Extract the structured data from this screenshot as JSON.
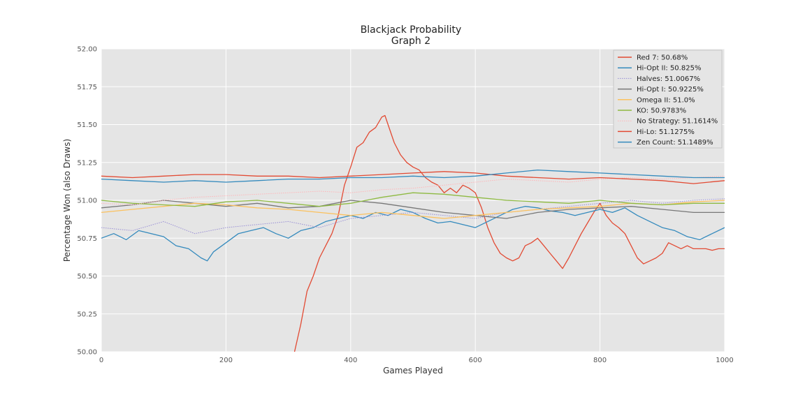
{
  "chart_data": {
    "type": "line",
    "title": "Blackjack Probability",
    "subtitle": "Graph 2",
    "xlabel": "Games Played",
    "ylabel": "Percentage Won (also Draws)",
    "xlim": [
      0,
      1000
    ],
    "ylim": [
      50.0,
      52.0
    ],
    "xticks": [
      0,
      200,
      400,
      600,
      800,
      1000
    ],
    "yticks": [
      "50.00",
      "50.25",
      "50.50",
      "50.75",
      "51.00",
      "51.25",
      "51.50",
      "51.75",
      "52.00"
    ],
    "grid": true,
    "legend_position": "top-right",
    "background": "#e5e5e5",
    "series": [
      {
        "name": "Red 7: 50.68%",
        "color": "#e24a33",
        "style": "solid",
        "x": [
          310,
          320,
          330,
          340,
          350,
          360,
          370,
          380,
          390,
          400,
          410,
          420,
          430,
          440,
          450,
          455,
          460,
          470,
          480,
          490,
          500,
          510,
          520,
          530,
          540,
          550,
          560,
          570,
          580,
          590,
          600,
          610,
          620,
          630,
          640,
          650,
          660,
          670,
          680,
          690,
          700,
          710,
          720,
          730,
          740,
          750,
          760,
          770,
          780,
          790,
          800,
          810,
          820,
          830,
          840,
          850,
          860,
          870,
          880,
          890,
          900,
          910,
          920,
          930,
          940,
          950,
          960,
          970,
          980,
          990,
          1000
        ],
        "y": [
          50.0,
          50.18,
          50.4,
          50.5,
          50.62,
          50.7,
          50.78,
          50.9,
          51.1,
          51.22,
          51.35,
          51.38,
          51.45,
          51.48,
          51.55,
          51.56,
          51.5,
          51.38,
          51.3,
          51.25,
          51.22,
          51.2,
          51.15,
          51.12,
          51.1,
          51.05,
          51.08,
          51.05,
          51.1,
          51.08,
          51.05,
          50.95,
          50.82,
          50.72,
          50.65,
          50.62,
          50.6,
          50.62,
          50.7,
          50.72,
          50.75,
          50.7,
          50.65,
          50.6,
          50.55,
          50.62,
          50.7,
          50.78,
          50.85,
          50.92,
          50.98,
          50.9,
          50.85,
          50.82,
          50.78,
          50.7,
          50.62,
          50.58,
          50.6,
          50.62,
          50.65,
          50.72,
          50.7,
          50.68,
          50.7,
          50.68,
          50.68,
          50.68,
          50.67,
          50.68,
          50.68
        ]
      },
      {
        "name": "Hi-Opt II: 50.825%",
        "color": "#348abd",
        "style": "solid",
        "x": [
          0,
          20,
          40,
          60,
          80,
          100,
          120,
          140,
          160,
          170,
          180,
          200,
          220,
          240,
          260,
          280,
          300,
          320,
          340,
          360,
          380,
          400,
          420,
          440,
          460,
          480,
          500,
          520,
          540,
          560,
          580,
          600,
          620,
          640,
          660,
          680,
          700,
          720,
          740,
          760,
          780,
          800,
          820,
          840,
          860,
          880,
          900,
          920,
          940,
          960,
          980,
          1000
        ],
        "y": [
          50.75,
          50.78,
          50.74,
          50.8,
          50.78,
          50.76,
          50.7,
          50.68,
          50.62,
          50.6,
          50.66,
          50.72,
          50.78,
          50.8,
          50.82,
          50.78,
          50.75,
          50.8,
          50.82,
          50.86,
          50.88,
          50.9,
          50.88,
          50.92,
          50.9,
          50.94,
          50.92,
          50.88,
          50.85,
          50.86,
          50.84,
          50.82,
          50.86,
          50.9,
          50.94,
          50.96,
          50.95,
          50.93,
          50.92,
          50.9,
          50.92,
          50.94,
          50.92,
          50.95,
          50.9,
          50.86,
          50.82,
          50.8,
          50.76,
          50.74,
          50.78,
          50.82
        ]
      },
      {
        "name": "Halves: 51.0067%",
        "color": "#988ed5",
        "style": "dotted",
        "x": [
          0,
          50,
          100,
          150,
          200,
          250,
          300,
          350,
          400,
          450,
          500,
          550,
          600,
          650,
          700,
          750,
          800,
          850,
          900,
          950,
          1000
        ],
        "y": [
          50.82,
          50.8,
          50.86,
          50.78,
          50.82,
          50.84,
          50.86,
          50.82,
          50.88,
          50.9,
          50.92,
          50.9,
          50.88,
          50.92,
          50.94,
          50.96,
          50.98,
          51.0,
          50.98,
          51.0,
          51.01
        ]
      },
      {
        "name": "Hi-Opt I: 50.9225%",
        "color": "#777777",
        "style": "solid",
        "x": [
          0,
          50,
          100,
          150,
          200,
          250,
          300,
          350,
          400,
          450,
          500,
          550,
          600,
          650,
          700,
          750,
          800,
          850,
          900,
          950,
          1000
        ],
        "y": [
          50.95,
          50.97,
          51.0,
          50.98,
          50.96,
          50.98,
          50.95,
          50.96,
          51.0,
          50.98,
          50.95,
          50.92,
          50.9,
          50.88,
          50.92,
          50.94,
          50.95,
          50.96,
          50.94,
          50.92,
          50.92
        ]
      },
      {
        "name": "Omega II: 51.0%",
        "color": "#fbc15e",
        "style": "solid",
        "x": [
          0,
          50,
          100,
          150,
          200,
          250,
          300,
          350,
          400,
          450,
          500,
          550,
          600,
          650,
          700,
          750,
          800,
          850,
          900,
          950,
          1000
        ],
        "y": [
          50.92,
          50.94,
          50.96,
          50.98,
          50.97,
          50.95,
          50.94,
          50.92,
          50.9,
          50.92,
          50.9,
          50.88,
          50.9,
          50.92,
          50.94,
          50.95,
          50.96,
          50.98,
          50.97,
          50.99,
          51.0
        ]
      },
      {
        "name": "KO: 50.9783%",
        "color": "#8eba42",
        "style": "solid",
        "x": [
          0,
          50,
          100,
          150,
          200,
          250,
          300,
          350,
          400,
          450,
          500,
          550,
          600,
          650,
          700,
          750,
          800,
          850,
          900,
          950,
          1000
        ],
        "y": [
          51.0,
          50.98,
          50.97,
          50.96,
          50.99,
          51.0,
          50.98,
          50.96,
          50.98,
          51.02,
          51.05,
          51.04,
          51.02,
          51.0,
          50.99,
          50.98,
          51.0,
          50.98,
          50.97,
          50.98,
          50.98
        ]
      },
      {
        "name": "No Strategy: 51.1614%",
        "color": "#ffb5b8",
        "style": "dotted",
        "x": [
          0,
          50,
          100,
          150,
          200,
          250,
          300,
          350,
          400,
          450,
          500,
          550,
          600,
          650,
          700,
          750,
          800,
          850,
          900,
          950,
          1000
        ],
        "y": [
          50.98,
          50.97,
          51.0,
          51.02,
          51.03,
          51.04,
          51.05,
          51.06,
          51.05,
          51.07,
          51.08,
          51.1,
          51.12,
          51.14,
          51.13,
          51.12,
          51.14,
          51.15,
          51.14,
          51.15,
          51.16
        ]
      },
      {
        "name": "Hi-Lo: 51.1275%",
        "color": "#e24a33",
        "style": "solid",
        "x": [
          0,
          50,
          100,
          150,
          200,
          250,
          300,
          350,
          400,
          450,
          500,
          550,
          600,
          650,
          700,
          750,
          800,
          850,
          900,
          950,
          1000
        ],
        "y": [
          51.16,
          51.15,
          51.16,
          51.17,
          51.17,
          51.16,
          51.16,
          51.15,
          51.16,
          51.17,
          51.18,
          51.19,
          51.18,
          51.16,
          51.15,
          51.14,
          51.15,
          51.14,
          51.13,
          51.11,
          51.13
        ]
      },
      {
        "name": "Zen Count: 51.1489%",
        "color": "#348abd",
        "style": "solid",
        "x": [
          0,
          50,
          100,
          150,
          200,
          250,
          300,
          350,
          400,
          450,
          500,
          550,
          600,
          650,
          700,
          750,
          800,
          850,
          900,
          950,
          1000
        ],
        "y": [
          51.14,
          51.13,
          51.12,
          51.13,
          51.12,
          51.13,
          51.14,
          51.14,
          51.15,
          51.15,
          51.16,
          51.15,
          51.16,
          51.18,
          51.2,
          51.19,
          51.18,
          51.17,
          51.16,
          51.15,
          51.15
        ]
      }
    ]
  }
}
